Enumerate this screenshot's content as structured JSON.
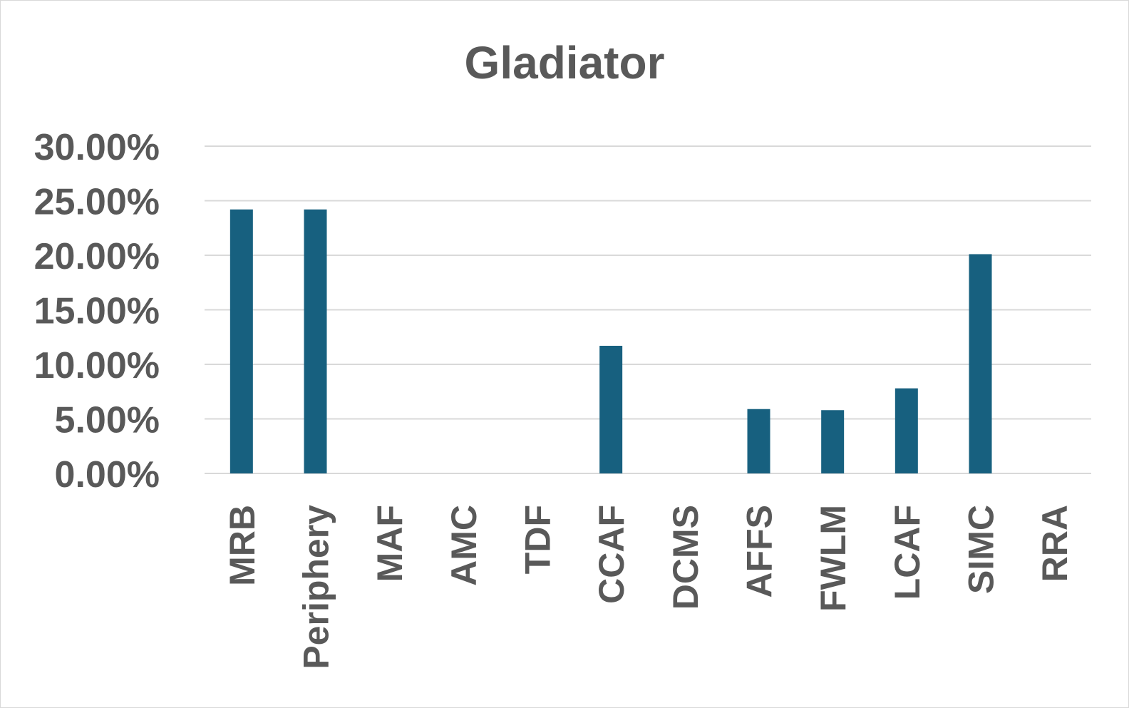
{
  "chart_data": {
    "type": "bar",
    "title": "Gladiator",
    "xlabel": "",
    "ylabel": "",
    "ylim": [
      0,
      0.3
    ],
    "yticks": [
      0,
      0.05,
      0.1,
      0.15,
      0.2,
      0.25,
      0.3
    ],
    "ytick_labels": [
      "0.00%",
      "5.00%",
      "10.00%",
      "15.00%",
      "20.00%",
      "25.00%",
      "30.00%"
    ],
    "grid": true,
    "legend": "none",
    "bar_color": "#17607f",
    "categories": [
      "MRB",
      "Periphery",
      "MAF",
      "AMC",
      "TDF",
      "CCAF",
      "DCMS",
      "AFFS",
      "FWLM",
      "LCAF",
      "SIMC",
      "RRA"
    ],
    "values": [
      0.242,
      0.242,
      0,
      0,
      0,
      0.117,
      0,
      0.059,
      0.058,
      0.078,
      0.201,
      0
    ]
  }
}
